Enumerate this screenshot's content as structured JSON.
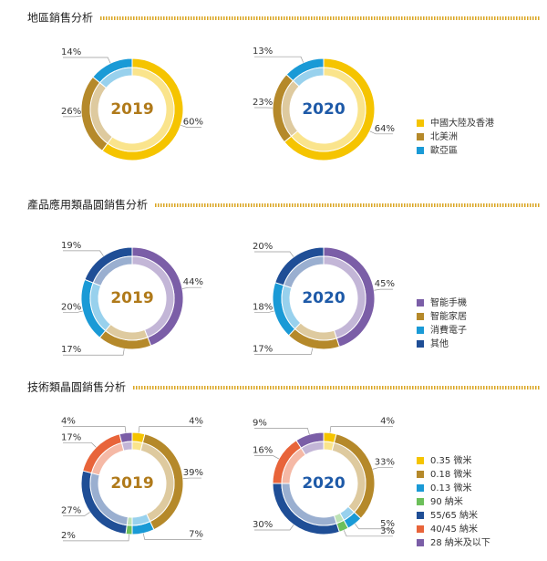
{
  "chart_data": [
    {
      "type": "donut",
      "title": "地區銷售分析",
      "categories": [
        "中國大陸及香港",
        "北美洲",
        "歐亞區"
      ],
      "colors": [
        "#f5c400",
        "#b5892a",
        "#1a9ad6"
      ],
      "series": [
        {
          "name": "2019",
          "color": "#b07a1a",
          "values": [
            60,
            26,
            14
          ],
          "value_labels": [
            "60%",
            "26%",
            "14%"
          ]
        },
        {
          "name": "2020",
          "color": "#1e5aa8",
          "values": [
            64,
            23,
            13
          ],
          "value_labels": [
            "64%",
            "23%",
            "13%"
          ]
        }
      ]
    },
    {
      "type": "donut",
      "title": "產品應用類晶圓銷售分析",
      "categories": [
        "智能手機",
        "智能家居",
        "消費電子",
        "其他"
      ],
      "colors": [
        "#7b5ea7",
        "#b5892a",
        "#1a9ad6",
        "#1f4e96"
      ],
      "series": [
        {
          "name": "2019",
          "color": "#b07a1a",
          "values": [
            44,
            17,
            20,
            19
          ],
          "value_labels": [
            "44%",
            "17%",
            "20%",
            "19%"
          ]
        },
        {
          "name": "2020",
          "color": "#1e5aa8",
          "values": [
            45,
            17,
            18,
            20
          ],
          "value_labels": [
            "45%",
            "17%",
            "18%",
            "20%"
          ]
        }
      ]
    },
    {
      "type": "donut",
      "title": "技術類晶圓銷售分析",
      "categories": [
        "0.35 微米",
        "0.18 微米",
        "0.13 微米",
        "90 納米",
        "55/65 納米",
        "40/45 納米",
        "28 納米及以下"
      ],
      "colors": [
        "#f5c400",
        "#b5892a",
        "#1a9ad6",
        "#6cbf5a",
        "#1f4e96",
        "#e8643a",
        "#7b5ea7"
      ],
      "series": [
        {
          "name": "2019",
          "color": "#b07a1a",
          "values": [
            4,
            39,
            7,
            2,
            27,
            17,
            4
          ],
          "value_labels": [
            "4%",
            "39%",
            "7%",
            "2%",
            "27%",
            "17%",
            "4%"
          ]
        },
        {
          "name": "2020",
          "color": "#1e5aa8",
          "values": [
            4,
            33,
            5,
            3,
            30,
            16,
            9
          ],
          "value_labels": [
            "4%",
            "33%",
            "5%",
            "3%",
            "30%",
            "16%",
            "9%"
          ]
        }
      ]
    }
  ]
}
